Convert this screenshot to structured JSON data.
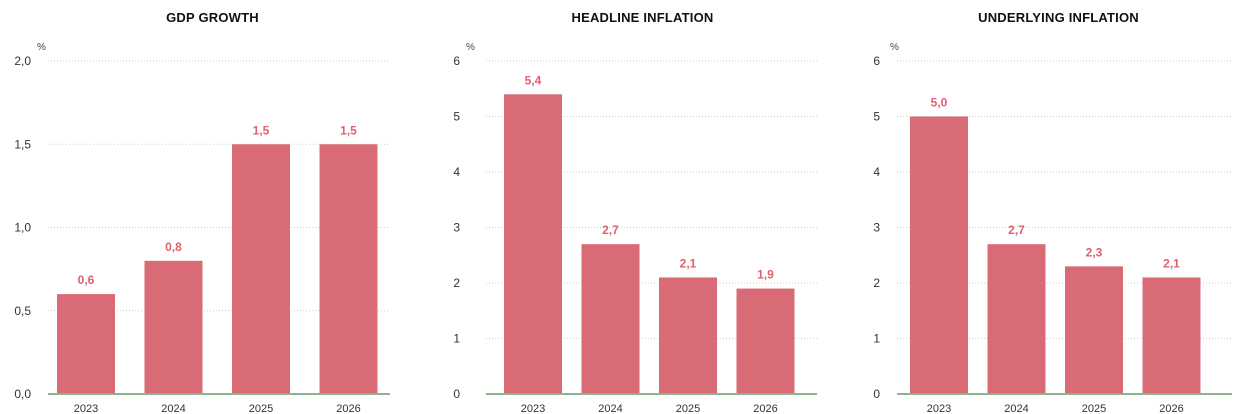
{
  "colors": {
    "bar": "#d96b77",
    "label": "#e0606e",
    "baseline": "#8fb38a",
    "grid": "#cfcfcf"
  },
  "chart_data": [
    {
      "type": "bar",
      "title": "GDP GROWTH",
      "unit": "%",
      "categories": [
        "2023",
        "2024",
        "2025",
        "2026"
      ],
      "values": [
        0.6,
        0.8,
        1.5,
        1.5
      ],
      "value_labels": [
        "0,6",
        "0,8",
        "1,5",
        "1,5"
      ],
      "yticks": [
        0,
        0.5,
        1.0,
        1.5,
        2.0
      ],
      "ytick_labels": [
        "0,0",
        "0,5",
        "1,0",
        "1,5",
        "2,0"
      ],
      "ylim": [
        0,
        2.0
      ],
      "grid": true
    },
    {
      "type": "bar",
      "title": "HEADLINE INFLATION",
      "unit": "%",
      "categories": [
        "2023",
        "2024",
        "2025",
        "2026"
      ],
      "values": [
        5.4,
        2.7,
        2.1,
        1.9
      ],
      "value_labels": [
        "5,4",
        "2,7",
        "2,1",
        "1,9"
      ],
      "yticks": [
        0,
        1,
        2,
        3,
        4,
        5,
        6
      ],
      "ytick_labels": [
        "0",
        "1",
        "2",
        "3",
        "4",
        "5",
        "6"
      ],
      "ylim": [
        0,
        6
      ],
      "grid": true
    },
    {
      "type": "bar",
      "title": "UNDERLYING INFLATION",
      "unit": "%",
      "categories": [
        "2023",
        "2024",
        "2025",
        "2026"
      ],
      "values": [
        5.0,
        2.7,
        2.3,
        2.1
      ],
      "value_labels": [
        "5,0",
        "2,7",
        "2,3",
        "2,1"
      ],
      "yticks": [
        0,
        1,
        2,
        3,
        4,
        5,
        6
      ],
      "ytick_labels": [
        "0",
        "1",
        "2",
        "3",
        "4",
        "5",
        "6"
      ],
      "ylim": [
        0,
        6
      ],
      "grid": true
    }
  ]
}
